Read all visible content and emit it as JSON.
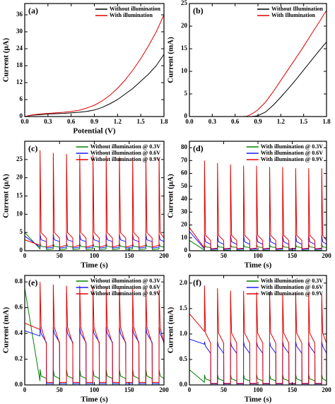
{
  "chart_data": [
    {
      "type": "line",
      "panel_label": "(a)",
      "xlabel": "Potential (V)",
      "ylabel": "Current (μA)",
      "legend": "upper right",
      "x": [
        0,
        0.1,
        0.2,
        0.3,
        0.4,
        0.5,
        0.6,
        0.7,
        0.8,
        0.9,
        1.0,
        1.1,
        1.2,
        1.3,
        1.4,
        1.5,
        1.6,
        1.7,
        1.8
      ],
      "series": [
        {
          "name": "Without illumination",
          "color": "#000000",
          "values": [
            0,
            0.5,
            0.7,
            0.9,
            1.0,
            1.1,
            1.3,
            1.5,
            1.8,
            2.3,
            3.2,
            4.5,
            6,
            8,
            10,
            12.5,
            15,
            18,
            22
          ]
        },
        {
          "name": "With illumination",
          "color": "#e00000",
          "values": [
            0,
            0.6,
            0.9,
            1.1,
            1.3,
            1.5,
            1.8,
            2.2,
            3,
            4,
            5.5,
            7.5,
            10,
            13,
            16.5,
            20.5,
            25,
            30,
            36
          ]
        }
      ],
      "xlim": [
        0,
        1.8
      ],
      "ylim": [
        0,
        40
      ],
      "xticks": [
        {
          "value": 0,
          "label": "0.0"
        },
        0.3,
        0.6,
        0.9,
        1.2,
        1.5,
        1.8
      ],
      "yticks": [
        0,
        6,
        12,
        18,
        24,
        30,
        36
      ]
    },
    {
      "type": "line",
      "panel_label": "(b)",
      "ylabel": "Current (mA)",
      "legend": "upper right",
      "x": [
        0,
        0.7,
        0.75,
        0.8,
        0.85,
        0.9,
        1.0,
        1.1,
        1.2,
        1.3,
        1.4,
        1.5,
        1.6,
        1.7,
        1.8
      ],
      "series": [
        {
          "name": "Without Illumination",
          "color": "#000000",
          "values": [
            0,
            0,
            0,
            0,
            0.05,
            0.2,
            1,
            2.5,
            4.3,
            6.2,
            8.2,
            10.3,
            12.4,
            14.5,
            16.5
          ]
        },
        {
          "name": "With Illumination",
          "color": "#e00000",
          "values": [
            0,
            0,
            0.05,
            0.4,
            0.9,
            1.5,
            3.2,
            5.5,
            8,
            10.5,
            13,
            15.5,
            18.2,
            20.8,
            23.5
          ]
        }
      ],
      "xlim": [
        0,
        1.8
      ],
      "ylim": [
        0,
        25
      ],
      "xticks": [
        {
          "value": 0,
          "label": "0.0"
        },
        0.3,
        0.6,
        0.9,
        1.2,
        1.5,
        1.8
      ],
      "yticks": [
        0,
        5,
        10,
        15,
        20,
        25
      ]
    },
    {
      "type": "line",
      "panel_label": "(c)",
      "xlabel": "Time (s)",
      "ylabel": "Current (μA)",
      "legend": "upper right",
      "x": [
        0,
        21.9,
        22,
        23.5,
        31,
        31.2,
        40.9,
        41,
        42.5,
        50,
        50.2,
        59.9,
        60,
        61.5,
        69,
        69.2,
        78.9,
        79,
        80.5,
        88,
        88.2,
        97.9,
        98,
        99.5,
        107,
        107.2,
        116.9,
        117,
        118.5,
        126,
        126.2,
        135.9,
        136,
        137.5,
        145,
        145.2,
        154.9,
        155,
        156.5,
        164,
        164.2,
        173.9,
        174,
        175.5,
        183,
        183.2,
        192.9,
        193,
        194.5,
        200
      ],
      "series": [
        {
          "name": "Without illumination @ 0.3V",
          "color": "#008000",
          "values": [
            5,
            0.5,
            2,
            1.2,
            1,
            0.3,
            0.5,
            2,
            1.2,
            1,
            0.3,
            0.5,
            2,
            1.2,
            1,
            0.3,
            0.5,
            2,
            1.2,
            1,
            0.3,
            0.5,
            2,
            1.2,
            1,
            0.3,
            0.5,
            2,
            1.2,
            1,
            0.3,
            0.5,
            2,
            1.2,
            1,
            0.3,
            0.5,
            2,
            1.2,
            1,
            0.3,
            0.5,
            2,
            1.2,
            1,
            0.3,
            0.5,
            2,
            1.2,
            1
          ]
        },
        {
          "name": "Without illumination @ 0.6V",
          "color": "#1a1aff",
          "values": [
            4,
            1,
            4.5,
            3,
            2.5,
            0.7,
            1,
            4.5,
            3,
            2.5,
            0.7,
            1,
            4.5,
            3,
            2.5,
            0.7,
            1,
            4.5,
            3,
            2.5,
            0.7,
            1,
            4.5,
            3,
            2.5,
            0.7,
            1,
            4.5,
            3,
            2.5,
            0.7,
            1,
            4.5,
            3,
            2.5,
            0.7,
            1,
            4.5,
            3,
            2.5,
            0.7,
            1,
            4.5,
            3,
            2.5,
            0.7,
            1,
            4.5,
            3,
            2.5
          ]
        },
        {
          "name": "Without illumination @ 0.9V",
          "color": "#e00000",
          "values": [
            3,
            1.5,
            27.5,
            5,
            3.5,
            1,
            1.5,
            26.8,
            5,
            3.5,
            1,
            1.5,
            26.5,
            5,
            3.5,
            1,
            1.5,
            26.3,
            5,
            3.5,
            1,
            1.5,
            26.2,
            5,
            3.5,
            1,
            1.5,
            26,
            5,
            3.5,
            1,
            1.5,
            25.8,
            5,
            3.5,
            1,
            1.5,
            25.6,
            5,
            3.5,
            1,
            1.5,
            25.5,
            5,
            3.5,
            1,
            1.5,
            25.4,
            5,
            3.5
          ]
        }
      ],
      "xlim": [
        0,
        200
      ],
      "ylim": [
        0,
        30
      ],
      "xticks": [
        0,
        50,
        100,
        150,
        200
      ],
      "yticks": [
        0,
        5,
        10,
        15,
        20,
        25
      ]
    },
    {
      "type": "line",
      "panel_label": "(d)",
      "xlabel": "Time (s)",
      "ylabel": "Current (μA)",
      "legend": "upper right",
      "x": [
        0,
        21.9,
        22,
        23.5,
        31,
        31.2,
        40.9,
        41,
        42.5,
        50,
        50.2,
        59.9,
        60,
        61.5,
        69,
        69.2,
        78.9,
        79,
        80.5,
        88,
        88.2,
        97.9,
        98,
        99.5,
        107,
        107.2,
        116.9,
        117,
        118.5,
        126,
        126.2,
        135.9,
        136,
        137.5,
        145,
        145.2,
        154.9,
        155,
        156.5,
        164,
        164.2,
        173.9,
        174,
        175.5,
        183,
        183.2,
        192.9,
        193,
        194.5,
        200
      ],
      "series": [
        {
          "name": "With illumination @ 0.3V",
          "color": "#008000",
          "values": [
            8,
            0.5,
            5,
            3,
            2.5,
            0.3,
            0.5,
            5,
            3,
            2.5,
            0.3,
            0.5,
            5,
            3,
            2.5,
            0.3,
            0.5,
            5,
            3,
            2.5,
            0.3,
            0.5,
            5,
            3,
            2.5,
            0.3,
            0.5,
            5,
            3,
            2.5,
            0.3,
            0.5,
            5,
            3,
            2.5,
            0.3,
            0.5,
            5,
            3,
            2.5,
            0.3,
            0.5,
            5,
            3,
            2.5,
            0.3,
            0.5,
            5,
            3,
            2.5
          ]
        },
        {
          "name": "With illumination @ 0.6V",
          "color": "#1a1aff",
          "values": [
            15,
            1.5,
            12,
            7,
            5,
            1,
            1.5,
            12,
            7,
            5,
            1,
            1.5,
            12,
            7,
            5,
            1,
            1.5,
            12,
            7,
            5,
            1,
            1.5,
            12,
            7,
            5,
            1,
            1.5,
            12,
            7,
            5,
            1,
            1.5,
            12,
            7,
            5,
            1,
            1.5,
            12,
            7,
            5,
            1,
            1.5,
            12,
            7,
            5,
            1,
            1.5,
            12,
            7,
            5
          ]
        },
        {
          "name": "With illumination @ 0.9V",
          "color": "#e00000",
          "values": [
            18,
            2,
            70,
            12,
            8,
            1.5,
            2,
            68,
            12,
            8,
            1.5,
            2,
            67,
            12,
            8,
            1.5,
            2,
            66,
            12,
            8,
            1.5,
            2,
            66,
            12,
            8,
            1.5,
            2,
            65,
            12,
            8,
            1.5,
            2,
            65,
            12,
            8,
            1.5,
            2,
            64,
            12,
            8,
            1.5,
            2,
            64,
            12,
            8,
            1.5,
            2,
            64,
            12,
            8
          ]
        }
      ],
      "xlim": [
        0,
        200
      ],
      "ylim": [
        0,
        85
      ],
      "xticks": [
        0,
        50,
        100,
        150,
        200
      ],
      "yticks": [
        0,
        10,
        20,
        30,
        40,
        50,
        60,
        70,
        80
      ]
    },
    {
      "type": "line",
      "panel_label": "(e)",
      "xlabel": "Time (s)",
      "ylabel": "Current (mA)",
      "legend": "upper right",
      "x": [
        0,
        21.9,
        22,
        23.5,
        31,
        31.2,
        40.9,
        41,
        42.5,
        50,
        50.2,
        59.9,
        60,
        61.5,
        69,
        69.2,
        78.9,
        79,
        80.5,
        88,
        88.2,
        97.9,
        98,
        99.5,
        107,
        107.2,
        116.9,
        117,
        118.5,
        126,
        126.2,
        135.9,
        136,
        137.5,
        145,
        145.2,
        154.9,
        155,
        156.5,
        164,
        164.2,
        173.9,
        174,
        175.5,
        183,
        183.2,
        192.9,
        193,
        194.5,
        200
      ],
      "series": [
        {
          "name": "Without illumination @ 0.3V",
          "color": "#008000",
          "values": [
            0.75,
            0.03,
            0.12,
            0.07,
            0.05,
            0,
            0,
            0.12,
            0.07,
            0.05,
            0,
            0,
            0.12,
            0.07,
            0.05,
            0,
            0,
            0.12,
            0.07,
            0.05,
            0,
            0,
            0.12,
            0.07,
            0.05,
            0,
            0,
            0.12,
            0.07,
            0.05,
            0,
            0,
            0.12,
            0.07,
            0.05,
            0,
            0,
            0.12,
            0.07,
            0.05,
            0,
            0,
            0.12,
            0.07,
            0.05,
            0,
            0,
            0.12,
            0.07,
            0.05
          ]
        },
        {
          "name": "Without illumination @ 0.6V",
          "color": "#1a1aff",
          "values": [
            0.42,
            0.38,
            0.45,
            0.4,
            0.33,
            0.01,
            0.01,
            0.45,
            0.4,
            0.33,
            0.01,
            0.01,
            0.45,
            0.4,
            0.33,
            0.01,
            0.01,
            0.45,
            0.4,
            0.33,
            0.01,
            0.01,
            0.45,
            0.4,
            0.33,
            0.01,
            0.01,
            0.45,
            0.4,
            0.33,
            0.01,
            0.01,
            0.45,
            0.4,
            0.33,
            0.01,
            0.01,
            0.45,
            0.4,
            0.33,
            0.01,
            0.01,
            0.45,
            0.4,
            0.33,
            0.01,
            0.01,
            0.45,
            0.4,
            0.33
          ]
        },
        {
          "name": "Without illumination @ 0.9V",
          "color": "#e00000",
          "values": [
            0.48,
            0.43,
            0.8,
            0.45,
            0.32,
            0.02,
            0.02,
            0.78,
            0.45,
            0.32,
            0.02,
            0.02,
            0.77,
            0.45,
            0.32,
            0.02,
            0.02,
            0.77,
            0.45,
            0.32,
            0.02,
            0.02,
            0.76,
            0.45,
            0.32,
            0.02,
            0.02,
            0.76,
            0.45,
            0.32,
            0.02,
            0.02,
            0.75,
            0.45,
            0.32,
            0.02,
            0.02,
            0.75,
            0.45,
            0.32,
            0.02,
            0.02,
            0.75,
            0.45,
            0.32,
            0.02,
            0.02,
            0.74,
            0.45,
            0.32
          ]
        }
      ],
      "xlim": [
        0,
        200
      ],
      "ylim": [
        0,
        0.85
      ],
      "xticks": [
        0,
        50,
        100,
        150,
        200
      ],
      "yticks": [
        {
          "value": 0,
          "label": "0.0"
        },
        0.2,
        0.4,
        0.6,
        0.8
      ]
    },
    {
      "type": "line",
      "panel_label": "(f)",
      "xlabel": "Time (s)",
      "ylabel": "Current (mA)",
      "legend": "upper right",
      "x": [
        0,
        21.9,
        22,
        23.5,
        31,
        31.2,
        40.9,
        41,
        42.5,
        50,
        50.2,
        59.9,
        60,
        61.5,
        69,
        69.2,
        78.9,
        79,
        80.5,
        88,
        88.2,
        97.9,
        98,
        99.5,
        107,
        107.2,
        116.9,
        117,
        118.5,
        126,
        126.2,
        135.9,
        136,
        137.5,
        145,
        145.2,
        154.9,
        155,
        156.5,
        164,
        164.2,
        173.9,
        174,
        175.5,
        183,
        183.2,
        192.9,
        193,
        194.5,
        200
      ],
      "series": [
        {
          "name": "With illumination @ 0.3V",
          "color": "#008000",
          "values": [
            0.3,
            0.05,
            0.2,
            0.12,
            0.08,
            0,
            0,
            0.2,
            0.12,
            0.08,
            0,
            0,
            0.2,
            0.12,
            0.08,
            0,
            0,
            0.2,
            0.12,
            0.08,
            0,
            0,
            0.2,
            0.12,
            0.08,
            0,
            0,
            0.2,
            0.12,
            0.08,
            0,
            0,
            0.2,
            0.12,
            0.08,
            0,
            0,
            0.2,
            0.12,
            0.08,
            0,
            0,
            0.2,
            0.12,
            0.08,
            0,
            0,
            0.2,
            0.12,
            0.08
          ]
        },
        {
          "name": "With illumination @ 0.6V",
          "color": "#1a1aff",
          "values": [
            0.9,
            0.8,
            0.85,
            0.76,
            0.62,
            0.02,
            0.02,
            0.85,
            0.76,
            0.62,
            0.02,
            0.02,
            0.85,
            0.76,
            0.62,
            0.02,
            0.02,
            0.85,
            0.76,
            0.62,
            0.02,
            0.02,
            0.85,
            0.76,
            0.62,
            0.02,
            0.02,
            0.85,
            0.76,
            0.62,
            0.02,
            0.02,
            0.85,
            0.76,
            0.62,
            0.02,
            0.02,
            0.85,
            0.76,
            0.62,
            0.02,
            0.02,
            0.85,
            0.76,
            0.62,
            0.02,
            0.02,
            0.85,
            0.76,
            0.62
          ]
        },
        {
          "name": "With illumination @ 0.9V",
          "color": "#e00000",
          "values": [
            1.4,
            1.05,
            1.95,
            1.02,
            0.82,
            0.03,
            0.03,
            1.9,
            1.02,
            0.82,
            0.03,
            0.03,
            1.85,
            1.02,
            0.82,
            0.03,
            0.03,
            1.85,
            1.02,
            0.82,
            0.03,
            0.03,
            1.82,
            1.02,
            0.82,
            0.03,
            0.03,
            1.82,
            1.02,
            0.82,
            0.03,
            0.03,
            1.8,
            1.02,
            0.82,
            0.03,
            0.03,
            1.8,
            1.02,
            0.82,
            0.03,
            0.03,
            1.8,
            1.02,
            0.82,
            0.03,
            0.03,
            1.78,
            1.02,
            0.82
          ]
        }
      ],
      "xlim": [
        0,
        200
      ],
      "ylim": [
        0,
        2.15
      ],
      "xticks": [
        0,
        50,
        100,
        150,
        200
      ],
      "yticks": [
        {
          "value": 0,
          "label": "0.0"
        },
        {
          "value": 0.5,
          "label": "0.5"
        },
        {
          "value": 1,
          "label": "1.0"
        },
        {
          "value": 1.5,
          "label": "1.5"
        },
        {
          "value": 2,
          "label": "2.0"
        }
      ]
    }
  ]
}
